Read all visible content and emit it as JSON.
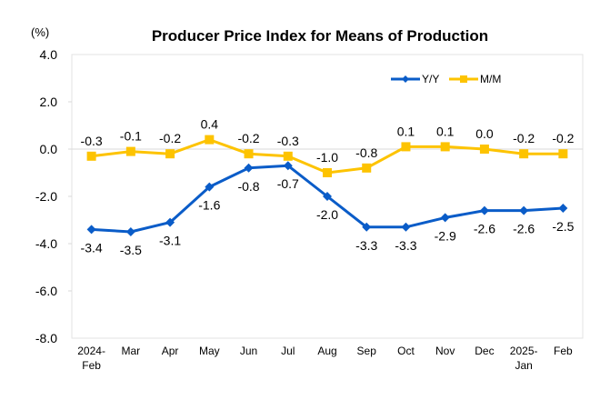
{
  "chart_data": {
    "type": "line",
    "title": "Producer Price Index for Means of Production",
    "ylabel": "(%)",
    "xlabel": "",
    "ylim": [
      -8.0,
      4.0
    ],
    "yticks": [
      "4.0",
      "2.0",
      "0.0",
      "-2.0",
      "-4.0",
      "-6.0",
      "-8.0"
    ],
    "ytick_values": [
      4,
      2,
      0,
      -2,
      -4,
      -6,
      -8
    ],
    "categories": [
      [
        "2024-",
        "Feb"
      ],
      [
        "Mar"
      ],
      [
        "Apr"
      ],
      [
        "May"
      ],
      [
        "Jun"
      ],
      [
        "Jul"
      ],
      [
        "Aug"
      ],
      [
        "Sep"
      ],
      [
        "Oct"
      ],
      [
        "Nov"
      ],
      [
        "Dec"
      ],
      [
        "2025-",
        "Jan"
      ],
      [
        "Feb"
      ]
    ],
    "grid": false,
    "legend_position": "top-right",
    "series": [
      {
        "name": "Y/Y",
        "color": "#0a5cc8",
        "marker": "diamond",
        "label_position": "below",
        "values": [
          -3.4,
          -3.5,
          -3.1,
          -1.6,
          -0.8,
          -0.7,
          -2.0,
          -3.3,
          -3.3,
          -2.9,
          -2.6,
          -2.6,
          -2.5
        ]
      },
      {
        "name": "M/M",
        "color": "#fdc300",
        "marker": "square",
        "label_position": "above",
        "values": [
          -0.3,
          -0.1,
          -0.2,
          0.4,
          -0.2,
          -0.3,
          -1.0,
          -0.8,
          0.1,
          0.1,
          0.0,
          -0.2,
          -0.2
        ]
      }
    ]
  }
}
